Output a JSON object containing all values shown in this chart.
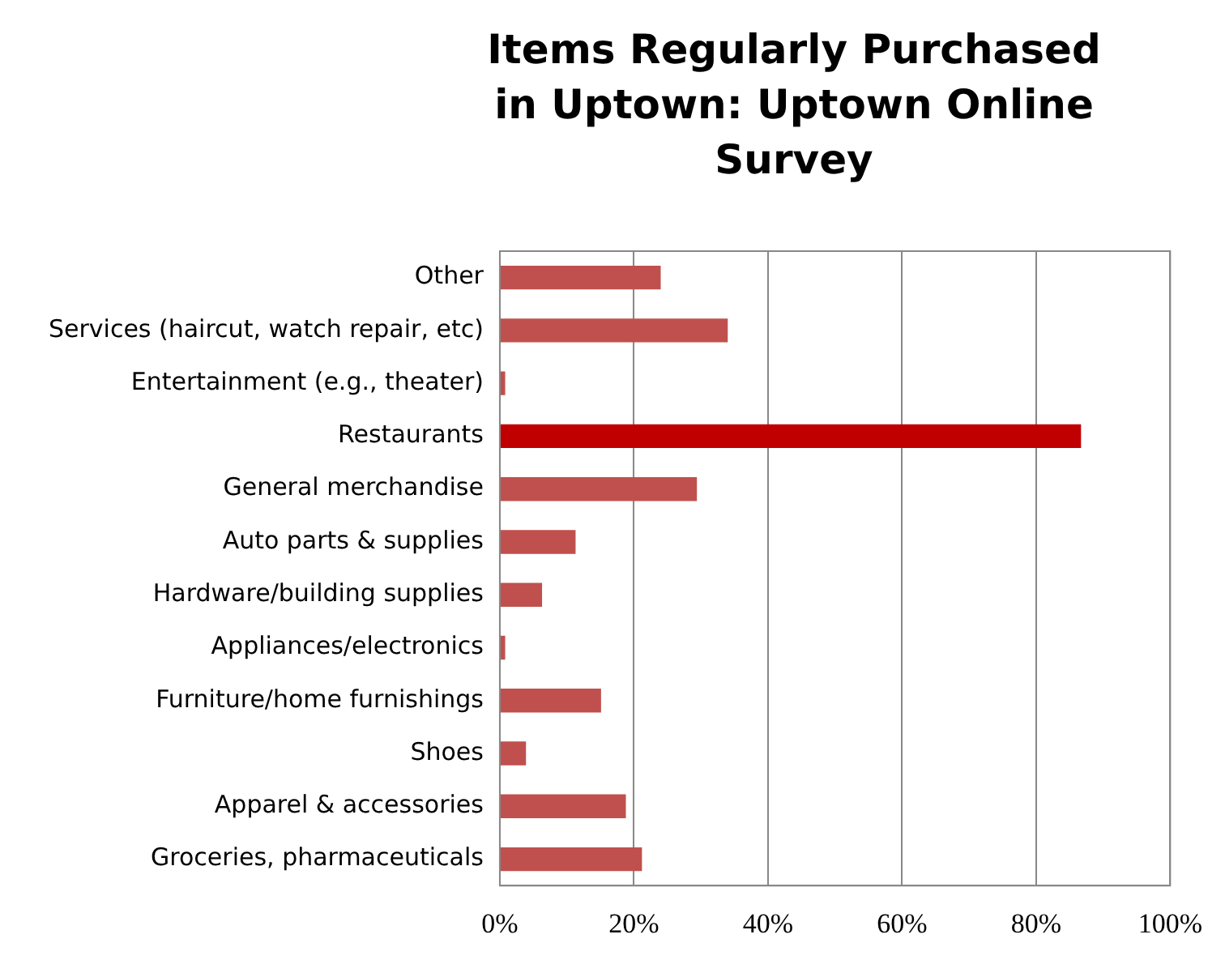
{
  "chart_data": {
    "type": "bar",
    "orientation": "horizontal",
    "title": "Items Regularly Purchased in Uptown: Uptown Online Survey",
    "categories": [
      "Other",
      "Services (haircut, watch repair, etc)",
      "Entertainment (e.g., theater)",
      "Restaurants",
      "General merchandise",
      "Auto parts & supplies",
      "Hardware/building supplies",
      "Appliances/electronics",
      "Furniture/home furnishings",
      "Shoes",
      "Apparel & accessories",
      "Groceries, pharmaceuticals"
    ],
    "values": [
      24,
      34,
      0.8,
      86.7,
      29.4,
      11.3,
      6.3,
      0.8,
      15.1,
      3.9,
      18.8,
      21.2
    ],
    "colors": [
      "#c0504d",
      "#c0504d",
      "#c0504d",
      "#c00000",
      "#c0504d",
      "#c0504d",
      "#c0504d",
      "#c0504d",
      "#c0504d",
      "#c0504d",
      "#c0504d",
      "#c0504d"
    ],
    "xlim": [
      0,
      100
    ],
    "xticks": [
      {
        "value": 0,
        "label": "0%"
      },
      {
        "value": 20,
        "label": "20%"
      },
      {
        "value": 40,
        "label": "40%"
      },
      {
        "value": 60,
        "label": "60%"
      },
      {
        "value": 80,
        "label": "80%"
      },
      {
        "value": 100,
        "label": "100%"
      }
    ],
    "grid": "x",
    "legend": false
  }
}
